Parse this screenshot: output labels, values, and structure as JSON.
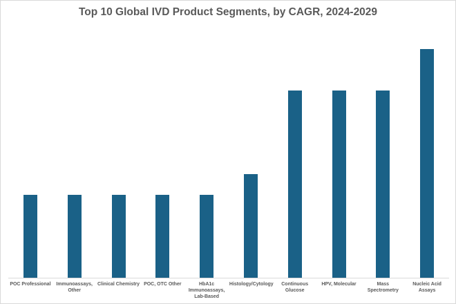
{
  "chart_data": {
    "type": "bar",
    "title": "Top 10 Global IVD Product Segments, by CAGR, 2024-2029",
    "categories": [
      "POC Professional",
      "Immunoassays, Other",
      "Clinical Chemistry",
      "POC, OTC Other",
      "HbA1c Immunoassays, Lab-Based",
      "Histology/Cytology",
      "Continuous Glucose",
      "HPV, Molecular",
      "Mass Spectrometry",
      "Nucleic Acid Assays"
    ],
    "values": [
      4,
      4,
      4,
      4,
      4,
      5,
      9,
      9,
      9,
      11
    ],
    "color": "#1a6187"
  }
}
